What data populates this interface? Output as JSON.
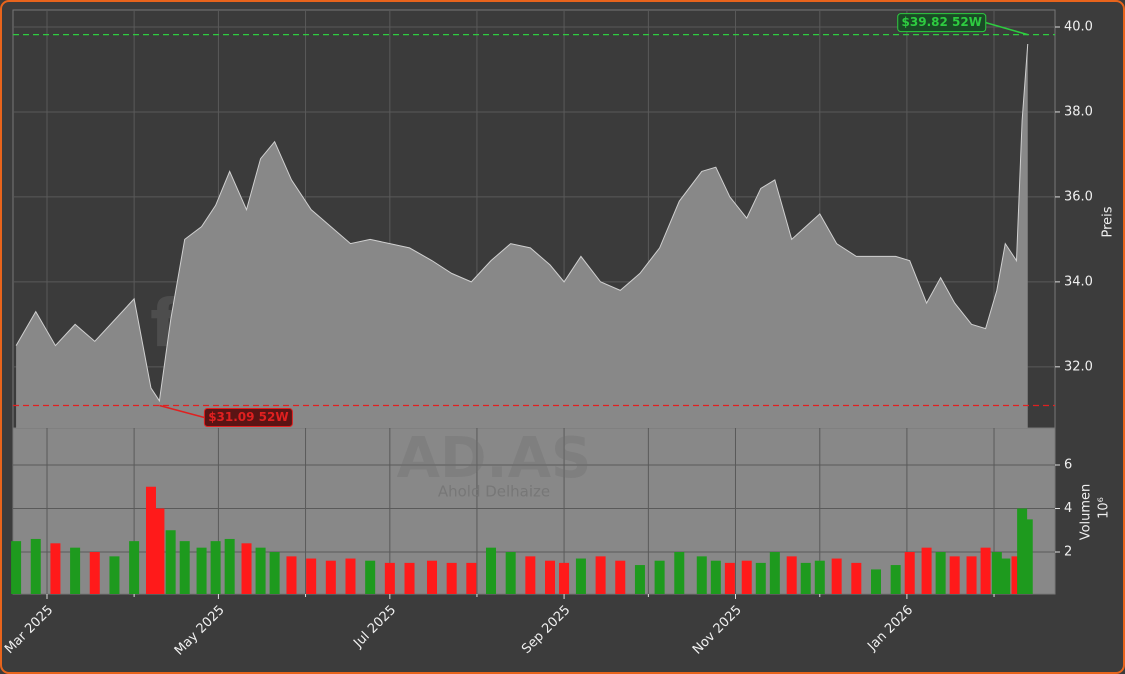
{
  "chart_data": [
    {
      "type": "area",
      "ylabel": "Preis",
      "watermark": "forexsignale.trade",
      "color": "#888888",
      "line_color": "#d0d0d0",
      "x": [
        48,
        55,
        62,
        69,
        76,
        83,
        90,
        96,
        99,
        103,
        108,
        114,
        119,
        124,
        130,
        135,
        140,
        146,
        153,
        160,
        167,
        174,
        181,
        188,
        196,
        203,
        210,
        217,
        224,
        231,
        238,
        243,
        249,
        256,
        263,
        270,
        277,
        284,
        292,
        297,
        302,
        308,
        313,
        318,
        324,
        329,
        334,
        340,
        347,
        354,
        361,
        366,
        372,
        377,
        382,
        388,
        393,
        397,
        400,
        404,
        406,
        408
      ],
      "values": [
        32.5,
        33.3,
        32.5,
        33.0,
        32.6,
        33.1,
        33.6,
        31.5,
        31.2,
        33.1,
        35.0,
        35.3,
        35.8,
        36.6,
        35.7,
        36.9,
        37.3,
        36.4,
        35.7,
        35.3,
        34.9,
        35.0,
        34.9,
        34.8,
        34.5,
        34.2,
        34.0,
        34.5,
        34.9,
        34.8,
        34.4,
        34.0,
        34.6,
        34.0,
        33.8,
        34.2,
        34.8,
        35.9,
        36.6,
        36.7,
        36.0,
        35.5,
        36.2,
        36.4,
        35.0,
        35.3,
        35.6,
        34.9,
        34.6,
        34.6,
        34.6,
        34.5,
        33.5,
        34.1,
        33.5,
        33.0,
        32.9,
        33.8,
        34.9,
        34.5,
        37.8,
        39.6
      ],
      "xlim": [
        46.9,
        417.7
      ],
      "ylim": [
        30.56,
        40.4
      ],
      "yticks": [
        {
          "value": 32,
          "label": "32.0"
        },
        {
          "value": 34,
          "label": "34.0"
        },
        {
          "value": 36,
          "label": "36.0"
        },
        {
          "value": 38,
          "label": "38.0"
        },
        {
          "value": 40,
          "label": "40.0"
        }
      ],
      "grid": true,
      "annotations": [
        {
          "label": "$39.82 52W",
          "value": 39.82,
          "x": 408,
          "color": "#2ecc40"
        },
        {
          "label": "$31.09 52W",
          "value": 31.09,
          "x": 99,
          "color": "#e02020"
        }
      ]
    },
    {
      "type": "bar",
      "ylabel": "Volumen",
      "yunit": "10⁶",
      "watermark": "AD.AS",
      "subtitle": "Ahold Delhaize",
      "up_color": "#1e9a1e",
      "down_color": "#ff1a1a",
      "x": [
        48,
        55,
        62,
        69,
        76,
        83,
        90,
        96,
        99,
        103,
        108,
        114,
        119,
        124,
        130,
        135,
        140,
        146,
        153,
        160,
        167,
        174,
        181,
        188,
        196,
        203,
        210,
        217,
        224,
        231,
        238,
        243,
        249,
        256,
        263,
        270,
        277,
        284,
        292,
        297,
        302,
        308,
        313,
        318,
        324,
        329,
        334,
        340,
        347,
        354,
        361,
        366,
        372,
        377,
        382,
        388,
        393,
        397,
        400,
        404,
        406,
        408
      ],
      "values": [
        2.5,
        2.6,
        2.4,
        2.2,
        2.0,
        1.8,
        2.5,
        5.0,
        4.0,
        3.0,
        2.5,
        2.2,
        2.5,
        2.6,
        2.4,
        2.2,
        2.0,
        1.8,
        1.7,
        1.6,
        1.7,
        1.6,
        1.5,
        1.5,
        1.6,
        1.5,
        1.5,
        2.2,
        2.0,
        1.8,
        1.6,
        1.5,
        1.7,
        1.8,
        1.6,
        1.4,
        1.6,
        2.0,
        1.8,
        1.6,
        1.5,
        1.6,
        1.5,
        2.0,
        1.8,
        1.5,
        1.6,
        1.7,
        1.5,
        1.2,
        1.4,
        2.0,
        2.2,
        2.0,
        1.8,
        1.8,
        2.2,
        2.0,
        1.7,
        1.8,
        4.0,
        3.5
      ],
      "xlim": [
        46.9,
        417.7
      ],
      "ylim": [
        0.07,
        7.7
      ],
      "yticks": [
        2,
        4,
        6
      ],
      "grid": true,
      "xticks": [
        {
          "value": 59,
          "label": "Mar 2025"
        },
        {
          "value": 120,
          "label": "May 2025"
        },
        {
          "value": 181,
          "label": "Jul 2025"
        },
        {
          "value": 243,
          "label": "Sep 2025"
        },
        {
          "value": 304,
          "label": "Nov 2025"
        },
        {
          "value": 365,
          "label": "Jan 2026"
        }
      ],
      "xticks_minor": [
        90,
        151,
        212,
        273,
        334,
        396
      ]
    }
  ]
}
